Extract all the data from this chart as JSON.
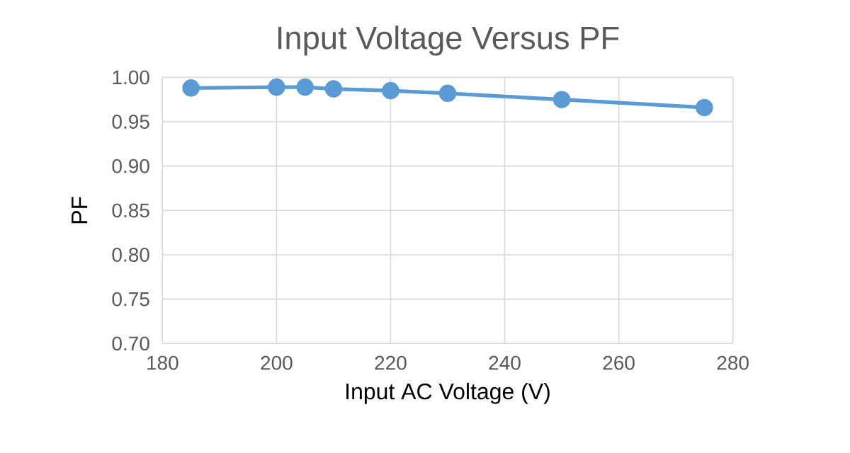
{
  "chart_data": {
    "type": "line",
    "title": "Input Voltage Versus PF",
    "xlabel": "Input AC Voltage (V)",
    "ylabel": "PF",
    "x": [
      185,
      200,
      205,
      210,
      220,
      230,
      250,
      275
    ],
    "series": [
      {
        "color": "#5b9bd5",
        "values": [
          0.988,
          0.989,
          0.989,
          0.987,
          0.985,
          0.982,
          0.975,
          0.966
        ]
      }
    ],
    "xlim": [
      180,
      280
    ],
    "xticks": [
      180,
      200,
      220,
      240,
      260,
      280
    ],
    "ylim": [
      0.7,
      1.0
    ],
    "yticks": [
      {
        "value": 0.7,
        "label": "0.70"
      },
      {
        "value": 0.75,
        "label": "0.75"
      },
      {
        "value": 0.8,
        "label": "0.80"
      },
      {
        "value": 0.85,
        "label": "0.85"
      },
      {
        "value": 0.9,
        "label": "0.90"
      },
      {
        "value": 0.95,
        "label": "0.95"
      },
      {
        "value": 1.0,
        "label": "1.00"
      }
    ],
    "grid": true,
    "marker": "circle",
    "line_style": "solid"
  }
}
